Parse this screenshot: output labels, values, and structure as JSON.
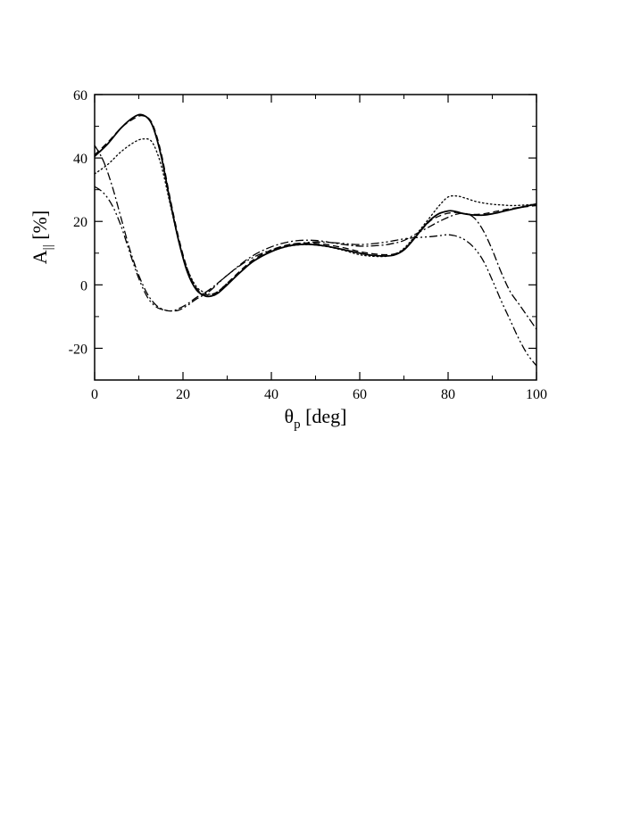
{
  "chart_data": {
    "type": "line",
    "xlabel": {
      "symbol": "θ",
      "subscript": "p",
      "rest": " [deg]"
    },
    "ylabel": {
      "symbol": "A",
      "subscript": "||",
      "rest": " [%]"
    },
    "xlim": [
      0,
      100
    ],
    "ylim": [
      -30,
      60
    ],
    "xticks": [
      0,
      20,
      40,
      60,
      80,
      100
    ],
    "yticks": [
      -20,
      0,
      20,
      40,
      60
    ],
    "xtick_labels": [
      "0",
      "20",
      "40",
      "60",
      "80",
      "100"
    ],
    "ytick_labels": [
      "-20",
      "0",
      "20",
      "40",
      "60"
    ],
    "grid": false,
    "legend": "none",
    "series": [
      {
        "style": "solid",
        "x": [
          0,
          3,
          6,
          9,
          11,
          13,
          15,
          17,
          19,
          21,
          23,
          25,
          26.5,
          28,
          30,
          33,
          36,
          40,
          44,
          48,
          52,
          56,
          60,
          63,
          66,
          68,
          70,
          72,
          74,
          76,
          78,
          80,
          81,
          82,
          84,
          86,
          88,
          90,
          92,
          95,
          100
        ],
        "y": [
          40.5,
          44.5,
          49.5,
          53,
          53.5,
          50.5,
          41,
          27,
          14,
          4,
          -1.5,
          -3.5,
          -3.5,
          -2.5,
          0,
          4,
          7.5,
          10.5,
          12.3,
          12.8,
          12.3,
          11.2,
          10,
          9.3,
          9.1,
          9.5,
          11,
          14,
          17.5,
          20.5,
          22.5,
          23.3,
          23.3,
          23,
          22.3,
          22,
          22,
          22.4,
          23,
          24,
          25.5
        ]
      },
      {
        "style": "dashed",
        "x": [
          0,
          3,
          6,
          9,
          11,
          13,
          15,
          17,
          19,
          21,
          23,
          25,
          26.5,
          28,
          30,
          33,
          36,
          40,
          44,
          48,
          52,
          56,
          60,
          63,
          66,
          68,
          70,
          72,
          74,
          76,
          78,
          80,
          82,
          84,
          86,
          88,
          90,
          92,
          95,
          100
        ],
        "y": [
          41,
          45,
          49.5,
          52.5,
          53.3,
          51,
          42,
          28,
          15,
          5,
          -1,
          -3,
          -3,
          -2,
          0.5,
          4.5,
          8,
          11,
          12.7,
          13.2,
          12.8,
          11.8,
          10.5,
          9.8,
          9.5,
          9.8,
          11.2,
          14,
          17.3,
          20.2,
          21.7,
          22.6,
          22.8,
          22.4,
          22.2,
          22.4,
          22.9,
          23.5,
          24.2,
          25
        ]
      },
      {
        "style": "dotted",
        "x": [
          0,
          3,
          6,
          9,
          11,
          13,
          15,
          17,
          19,
          21,
          23,
          25,
          26.5,
          28,
          30,
          33,
          36,
          40,
          44,
          48,
          52,
          56,
          60,
          63,
          66,
          68,
          70,
          72,
          74,
          76,
          78,
          80,
          82,
          84,
          86,
          88,
          90,
          92,
          95,
          100
        ],
        "y": [
          35,
          38,
          42,
          45,
          46,
          45,
          38,
          26,
          14,
          5,
          -0.5,
          -2.5,
          -3,
          -2,
          0.5,
          4,
          7.5,
          10.5,
          12.2,
          12.7,
          12.2,
          11,
          9.5,
          9,
          9,
          9.7,
          11.5,
          14.5,
          18,
          21.5,
          25,
          27.7,
          28,
          27.3,
          26.4,
          25.8,
          25.4,
          25.2,
          25,
          25.4
        ]
      },
      {
        "style": "dashdot",
        "x": [
          0,
          2,
          4,
          6,
          8,
          10,
          12,
          14,
          16,
          17.5,
          19,
          21,
          23,
          26,
          30,
          35,
          40,
          45,
          50,
          55,
          60,
          65,
          68,
          70,
          72,
          74,
          76,
          78,
          80,
          82,
          84,
          86,
          88,
          90,
          92,
          94,
          96,
          98,
          100
        ],
        "y": [
          44,
          39,
          31,
          21,
          11,
          3,
          -3,
          -6.5,
          -8,
          -8.2,
          -7.5,
          -6,
          -4,
          -1.5,
          3,
          8.5,
          12,
          13.8,
          14,
          13,
          12.2,
          12.5,
          13.2,
          14,
          15.5,
          17,
          18.5,
          20,
          21.3,
          22.3,
          22.5,
          21,
          17,
          11,
          4,
          -2,
          -6,
          -10,
          -14
        ]
      },
      {
        "style": "dashdotdot",
        "x": [
          0,
          2,
          4,
          6,
          8,
          10,
          12,
          14,
          16,
          17.5,
          19,
          21,
          23,
          26,
          30,
          35,
          40,
          45,
          50,
          55,
          60,
          65,
          68,
          70,
          72,
          74,
          76,
          78,
          80,
          82,
          84,
          86,
          88,
          90,
          92,
          94,
          96,
          98,
          100
        ],
        "y": [
          31,
          29,
          25,
          18.5,
          10,
          2,
          -4,
          -7,
          -8,
          -8.2,
          -8,
          -6.5,
          -4.5,
          -2,
          3,
          8,
          11,
          12.8,
          13.5,
          13.2,
          12.7,
          13.3,
          14,
          14.5,
          14.8,
          15,
          15.2,
          15.5,
          15.8,
          15.3,
          14,
          11.5,
          7.5,
          1.5,
          -5,
          -11,
          -17,
          -22,
          -25.5
        ]
      }
    ]
  }
}
